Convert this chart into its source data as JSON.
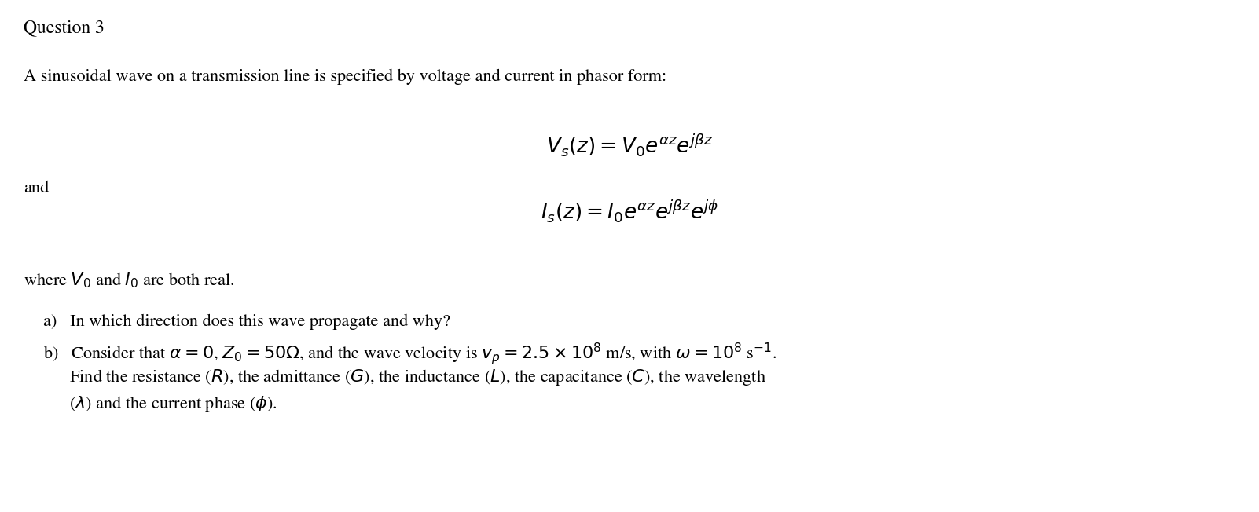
{
  "background_color": "#ffffff",
  "title": "Question 3",
  "line1": "A sinusoidal wave on a transmission line is specified by voltage and current in phasor form:",
  "eq1": "$V_s(z) = V_0e^{\\alpha z}e^{j\\beta z}$",
  "and_text": "and",
  "eq2": "$I_s(z) = I_0e^{\\alpha z}e^{j\\beta z}e^{j\\phi}$",
  "where_text": "where $V_0$ and $I_0$ are both real.",
  "part_a": "a)   In which direction does this wave propagate and why?",
  "part_b1": "b)   Consider that $\\alpha = 0$, $Z_0 = 50\\Omega$, and the wave velocity is $v_p = 2.5 \\times 10^8$ m/s, with $\\omega = 10^8$ s$^{-1}$.",
  "part_b2": "      Find the resistance ($R$), the admittance ($G$), the inductance ($L$), the capacitance ($C$), the wavelength",
  "part_b3": "      ($\\lambda$) and the current phase ($\\phi$).",
  "figsize": [
    16.02,
    6.52
  ],
  "dpi": 100,
  "font_size_title": 17,
  "font_size_body": 16,
  "font_size_eq": 19
}
